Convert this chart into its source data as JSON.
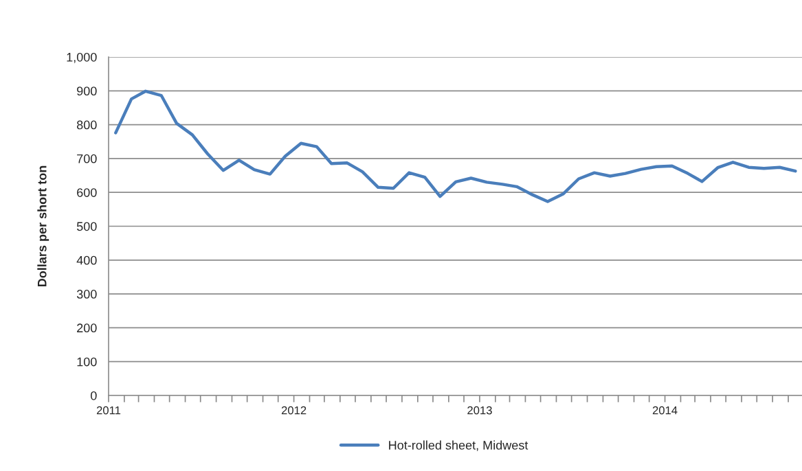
{
  "chart_data": {
    "type": "line",
    "ylabel": "Dollars per short ton",
    "x": [
      "2011-01-15",
      "2011-02-15",
      "2011-03-15",
      "2011-04-15",
      "2011-05-15",
      "2011-06-15",
      "2011-07-15",
      "2011-08-15",
      "2011-09-15",
      "2011-10-15",
      "2011-11-15",
      "2011-12-15",
      "2012-01-15",
      "2012-02-15",
      "2012-03-15",
      "2012-04-15",
      "2012-05-15",
      "2012-06-15",
      "2012-07-15",
      "2012-08-15",
      "2012-09-15",
      "2012-10-15",
      "2012-11-15",
      "2012-12-15",
      "2013-01-15",
      "2013-02-15",
      "2013-03-15",
      "2013-04-15",
      "2013-05-15",
      "2013-06-15",
      "2013-07-15",
      "2013-08-15",
      "2013-09-15",
      "2013-10-15",
      "2013-11-15",
      "2013-12-15",
      "2014-01-15",
      "2014-02-15",
      "2014-03-15",
      "2014-04-15",
      "2014-05-15",
      "2014-06-15",
      "2014-07-15",
      "2014-08-15",
      "2014-09-15"
    ],
    "series": [
      {
        "name": "Hot-rolled sheet, Midwest",
        "color": "#4a7ebb",
        "values": [
          776,
          876,
          899,
          886,
          804,
          770,
          714,
          665,
          695,
          667,
          654,
          707,
          745,
          735,
          685,
          687,
          661,
          615,
          612,
          658,
          645,
          588,
          631,
          642,
          630,
          624,
          617,
          593,
          573,
          596,
          640,
          658,
          648,
          656,
          668,
          676,
          678,
          656,
          632,
          673,
          689,
          674,
          671,
          674,
          663
        ]
      }
    ],
    "xlim": [
      "2011-01-01",
      "2014-09-28"
    ],
    "xticks": [
      {
        "value": "2011-01-01",
        "label": "2011"
      },
      {
        "value": "2011-02-01",
        "label": null
      },
      {
        "value": "2011-03-01",
        "label": null
      },
      {
        "value": "2011-04-01",
        "label": null
      },
      {
        "value": "2011-05-01",
        "label": null
      },
      {
        "value": "2011-06-01",
        "label": null
      },
      {
        "value": "2011-07-01",
        "label": null
      },
      {
        "value": "2011-08-01",
        "label": null
      },
      {
        "value": "2011-09-01",
        "label": null
      },
      {
        "value": "2011-10-01",
        "label": null
      },
      {
        "value": "2011-11-01",
        "label": null
      },
      {
        "value": "2011-12-01",
        "label": null
      },
      {
        "value": "2012-01-01",
        "label": "2012"
      },
      {
        "value": "2012-02-01",
        "label": null
      },
      {
        "value": "2012-03-01",
        "label": null
      },
      {
        "value": "2012-04-01",
        "label": null
      },
      {
        "value": "2012-05-01",
        "label": null
      },
      {
        "value": "2012-06-01",
        "label": null
      },
      {
        "value": "2012-07-01",
        "label": null
      },
      {
        "value": "2012-08-01",
        "label": null
      },
      {
        "value": "2012-09-01",
        "label": null
      },
      {
        "value": "2012-10-01",
        "label": null
      },
      {
        "value": "2012-11-01",
        "label": null
      },
      {
        "value": "2012-12-01",
        "label": null
      },
      {
        "value": "2013-01-01",
        "label": "2013"
      },
      {
        "value": "2013-02-01",
        "label": null
      },
      {
        "value": "2013-03-01",
        "label": null
      },
      {
        "value": "2013-04-01",
        "label": null
      },
      {
        "value": "2013-05-01",
        "label": null
      },
      {
        "value": "2013-06-01",
        "label": null
      },
      {
        "value": "2013-07-01",
        "label": null
      },
      {
        "value": "2013-08-01",
        "label": null
      },
      {
        "value": "2013-09-01",
        "label": null
      },
      {
        "value": "2013-10-01",
        "label": null
      },
      {
        "value": "2013-11-01",
        "label": null
      },
      {
        "value": "2013-12-01",
        "label": null
      },
      {
        "value": "2014-01-01",
        "label": "2014"
      },
      {
        "value": "2014-02-01",
        "label": null
      },
      {
        "value": "2014-03-01",
        "label": null
      },
      {
        "value": "2014-04-01",
        "label": null
      },
      {
        "value": "2014-05-01",
        "label": null
      },
      {
        "value": "2014-06-01",
        "label": null
      },
      {
        "value": "2014-07-01",
        "label": null
      },
      {
        "value": "2014-08-01",
        "label": null
      },
      {
        "value": "2014-09-01",
        "label": null
      }
    ],
    "ylim": [
      0,
      1000
    ],
    "yticks": [
      0,
      {
        "value": 100,
        "label": "100"
      },
      {
        "value": 200,
        "label": "200"
      },
      {
        "value": 300,
        "label": "300"
      },
      {
        "value": 400,
        "label": "400"
      },
      {
        "value": 500,
        "label": "500"
      },
      {
        "value": 600,
        "label": "600"
      },
      {
        "value": 700,
        "label": "700"
      },
      {
        "value": 800,
        "label": "800"
      },
      {
        "value": 900,
        "label": "900"
      },
      {
        "value": 1000,
        "label": "1,000"
      }
    ],
    "grid": "y",
    "legend": "bottom",
    "marker": "none",
    "line_style": "solid"
  }
}
